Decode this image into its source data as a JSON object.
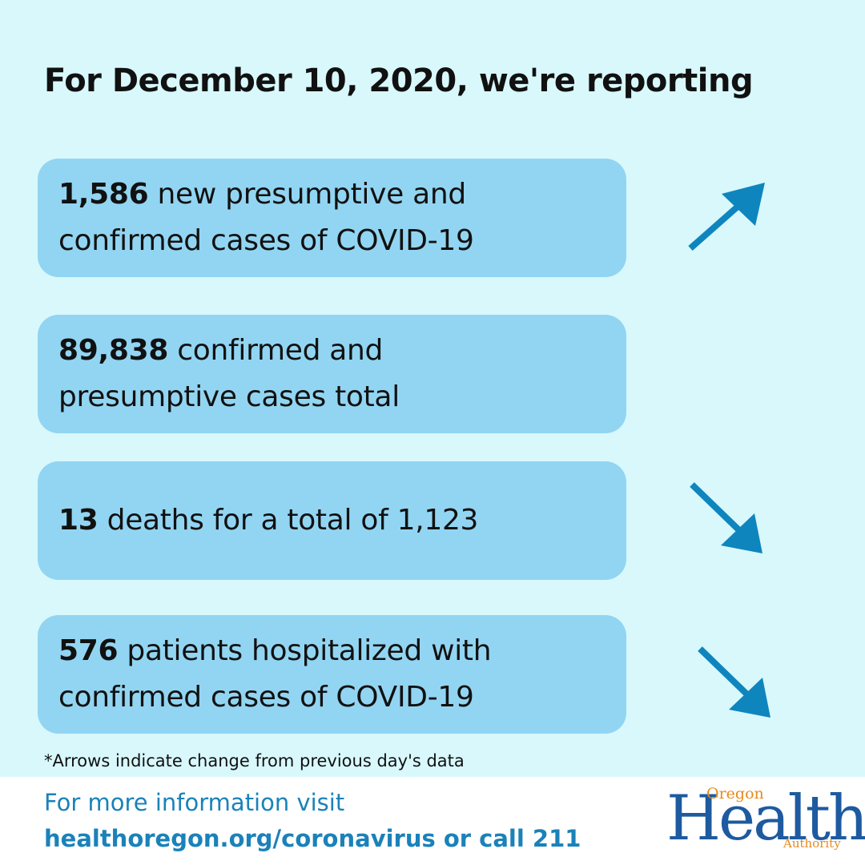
{
  "headline": "For December 10, 2020, we're reporting",
  "stats": [
    {
      "value": "1,586",
      "line1_rest": " new presumptive and",
      "line2": "confirmed cases of COVID-19",
      "trend": "up"
    },
    {
      "value": "89,838",
      "line1_rest": " confirmed and",
      "line2": "presumptive cases total",
      "trend": "none"
    },
    {
      "value": "13",
      "line1_rest": " deaths for a total of 1,123",
      "line2": "",
      "trend": "down"
    },
    {
      "value": "576",
      "line1_rest": " patients hospitalized with",
      "line2": "confirmed cases of COVID-19",
      "trend": "down"
    }
  ],
  "footnote": "*Arrows indicate change from previous day's data",
  "footer": {
    "line1": "For more information visit",
    "line2": "healthoregon.org/coronavirus or call 211"
  },
  "logo": {
    "top": "Oregon",
    "main": "Health",
    "bottom": "Authority"
  },
  "colors": {
    "background": "#d8f8fc",
    "card": "#92d5f2",
    "arrow": "#0f85be",
    "footer_text": "#1a82b9",
    "logo_blue": "#1d5aa0",
    "logo_orange": "#e58a1f"
  },
  "icons": [
    "arrow-up-right-icon",
    "arrow-down-right-icon"
  ]
}
